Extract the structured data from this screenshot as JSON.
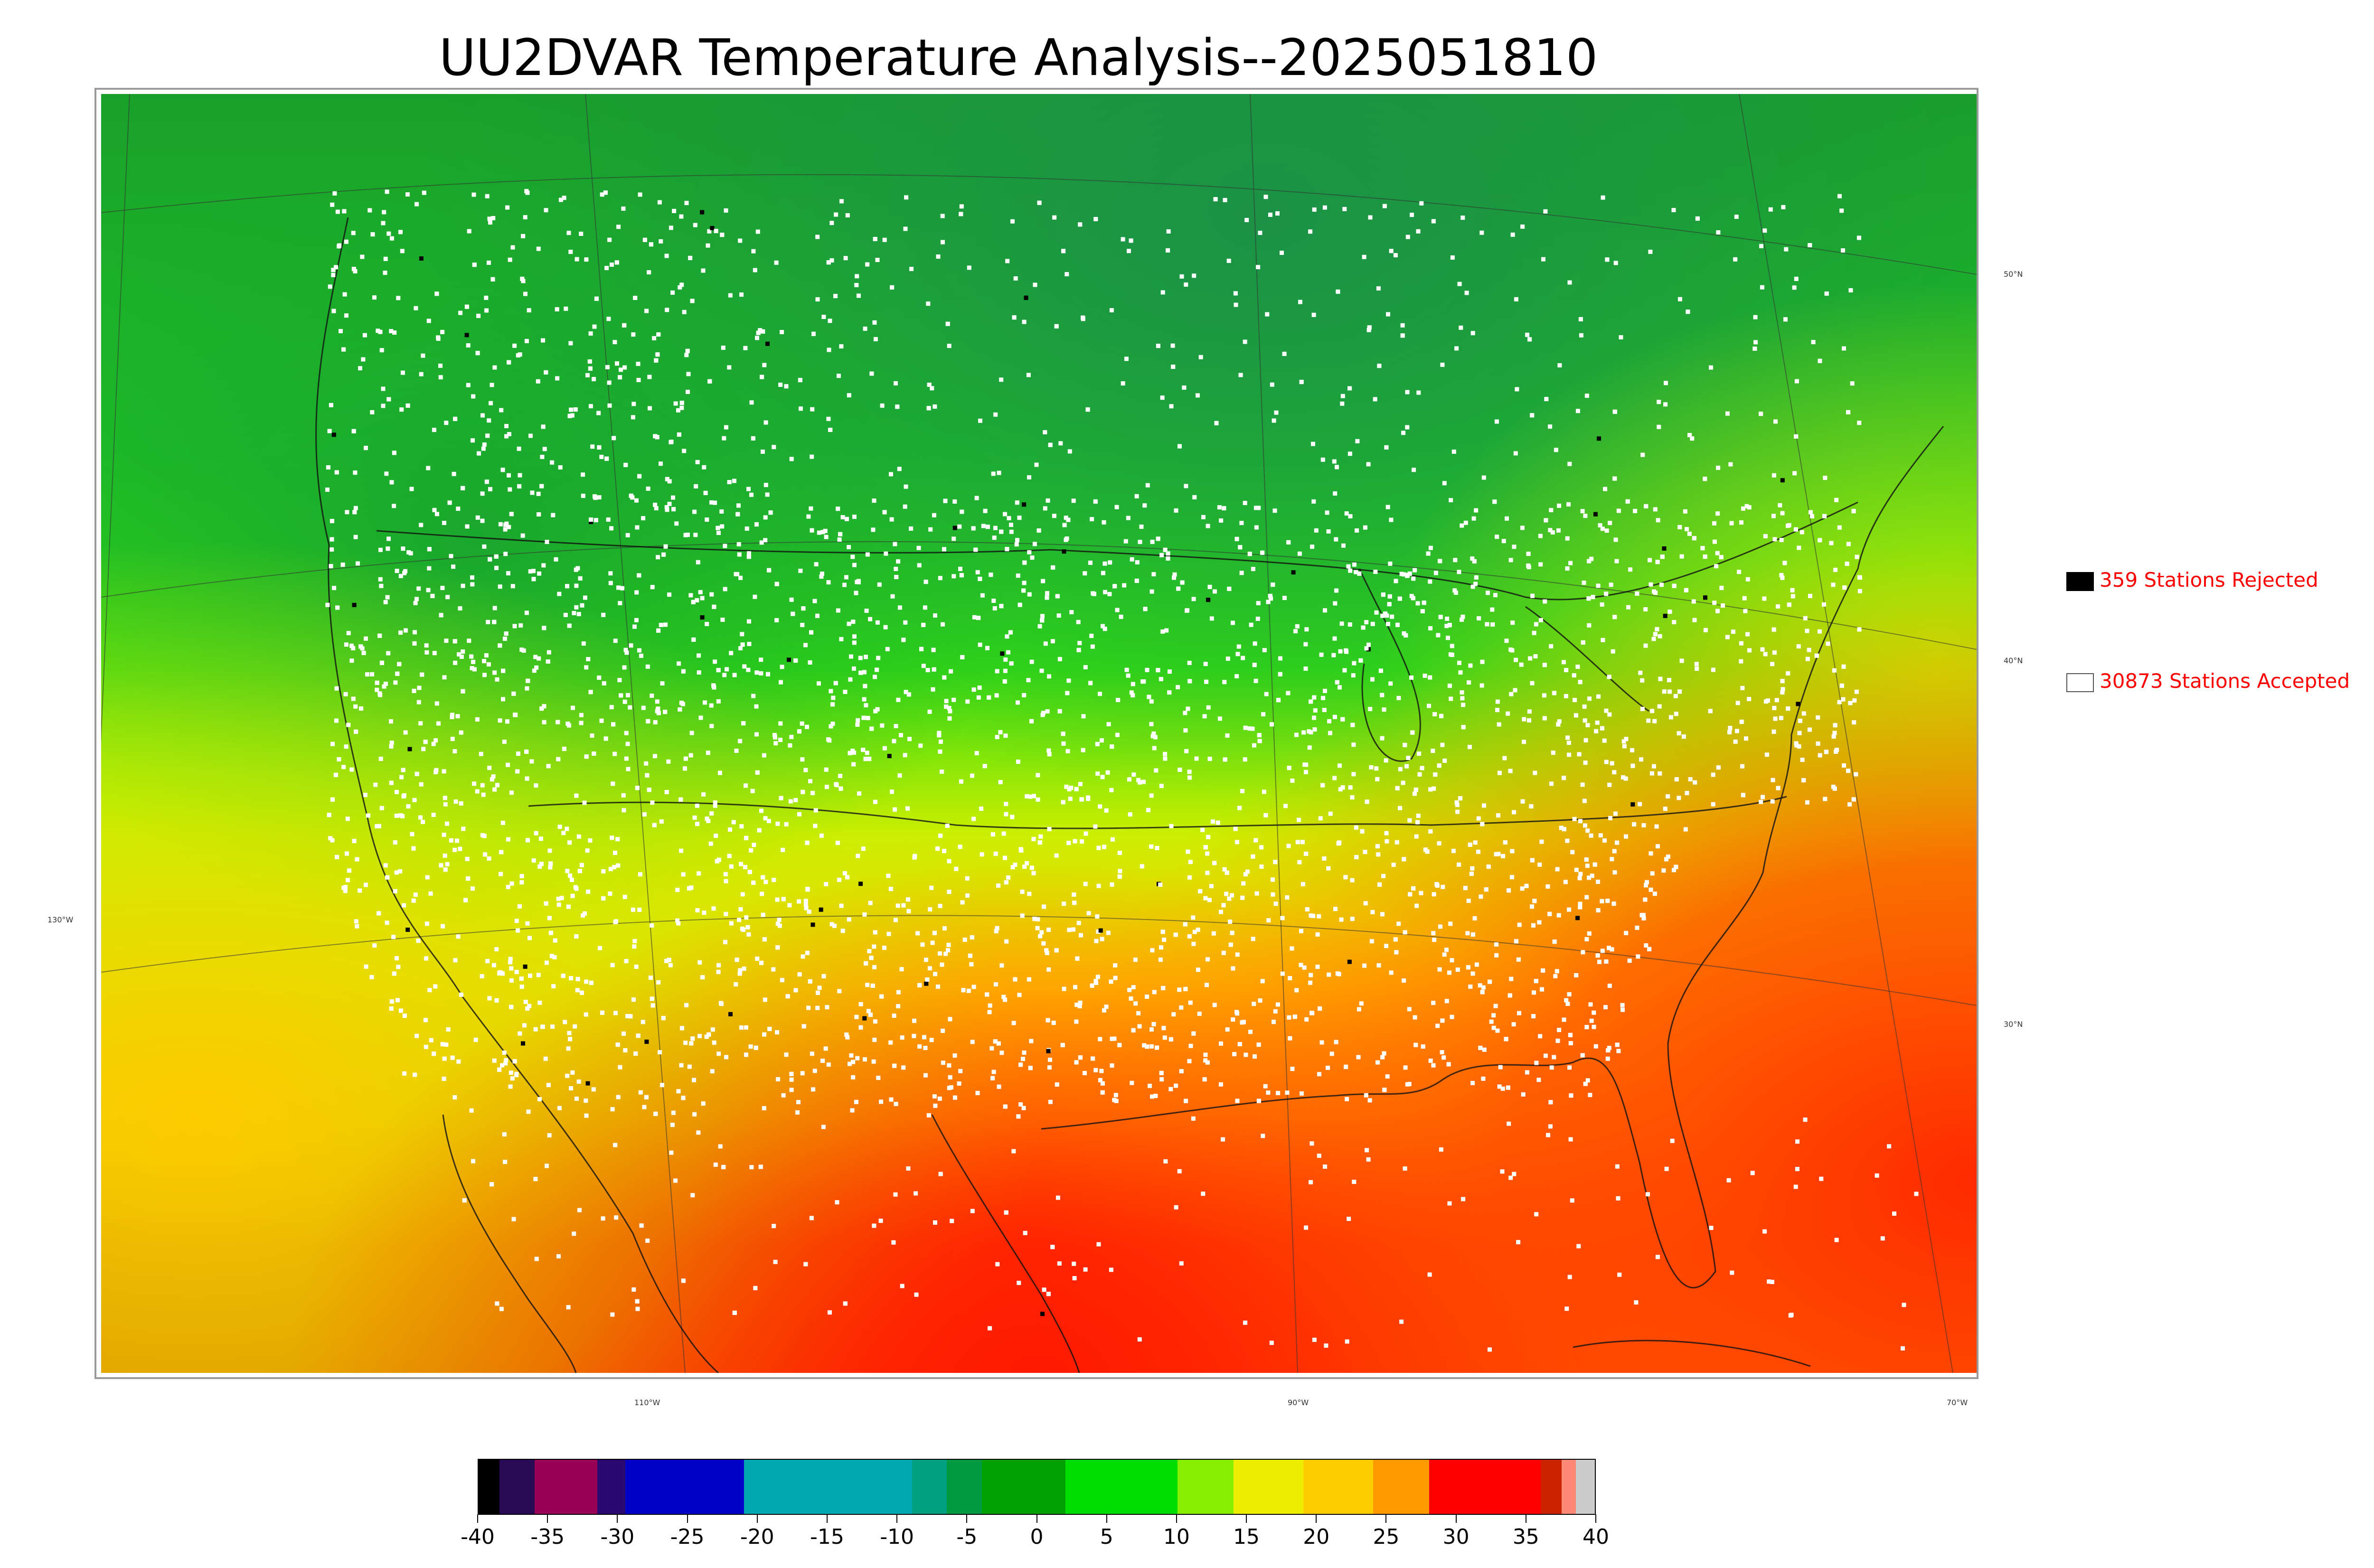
{
  "title": "UU2DVAR Temperature Analysis--2025051810",
  "map": {
    "lat_labels": [
      "50°N",
      "40°N",
      "30°N"
    ],
    "lon_labels": [
      "130°W",
      "110°W",
      "90°W",
      "70°W"
    ],
    "background_colors": {
      "cold_north": "#1f9e2f",
      "mid": "#22dd11",
      "warm": "#ccee00",
      "hot": "#ffbb00",
      "very_hot": "#ff2200"
    }
  },
  "legend": {
    "rejected": {
      "label": "359 Stations Rejected",
      "count": 359,
      "swatch_color": "#000000"
    },
    "accepted": {
      "label": "30873 Stations Accepted",
      "count": 30873,
      "swatch_color": "#ffffff"
    },
    "text_color": "#ff0000"
  },
  "colorbar": {
    "min": -40,
    "max": 40,
    "tick_labels": [
      "-40",
      "-35",
      "-30",
      "-25",
      "-20",
      "-15",
      "-10",
      "-5",
      "0",
      "5",
      "10",
      "15",
      "20",
      "25",
      "30",
      "35",
      "40"
    ],
    "bands": [
      {
        "from": -40,
        "to": -38.5,
        "color": "#000000"
      },
      {
        "from": -38.5,
        "to": -36,
        "color": "#2a0a55"
      },
      {
        "from": -36,
        "to": -31.5,
        "color": "#990055"
      },
      {
        "from": -31.5,
        "to": -29.5,
        "color": "#2a0a70"
      },
      {
        "from": -29.5,
        "to": -21,
        "color": "#0000c8"
      },
      {
        "from": -21,
        "to": -9,
        "color": "#00a8b0"
      },
      {
        "from": -9,
        "to": -6.5,
        "color": "#00a080"
      },
      {
        "from": -6.5,
        "to": -4,
        "color": "#009a40"
      },
      {
        "from": -4,
        "to": 2,
        "color": "#00a000"
      },
      {
        "from": 2,
        "to": 10,
        "color": "#00dd00"
      },
      {
        "from": 10,
        "to": 14,
        "color": "#88ee00"
      },
      {
        "from": 14,
        "to": 19,
        "color": "#eeee00"
      },
      {
        "from": 19,
        "to": 24,
        "color": "#ffcc00"
      },
      {
        "from": 24,
        "to": 28,
        "color": "#ff9900"
      },
      {
        "from": 28,
        "to": 36,
        "color": "#ff0000"
      },
      {
        "from": 36,
        "to": 37.5,
        "color": "#cc2200"
      },
      {
        "from": 37.5,
        "to": 38.5,
        "color": "#ff8877"
      },
      {
        "from": 38.5,
        "to": 40,
        "color": "#cccccc"
      }
    ]
  }
}
